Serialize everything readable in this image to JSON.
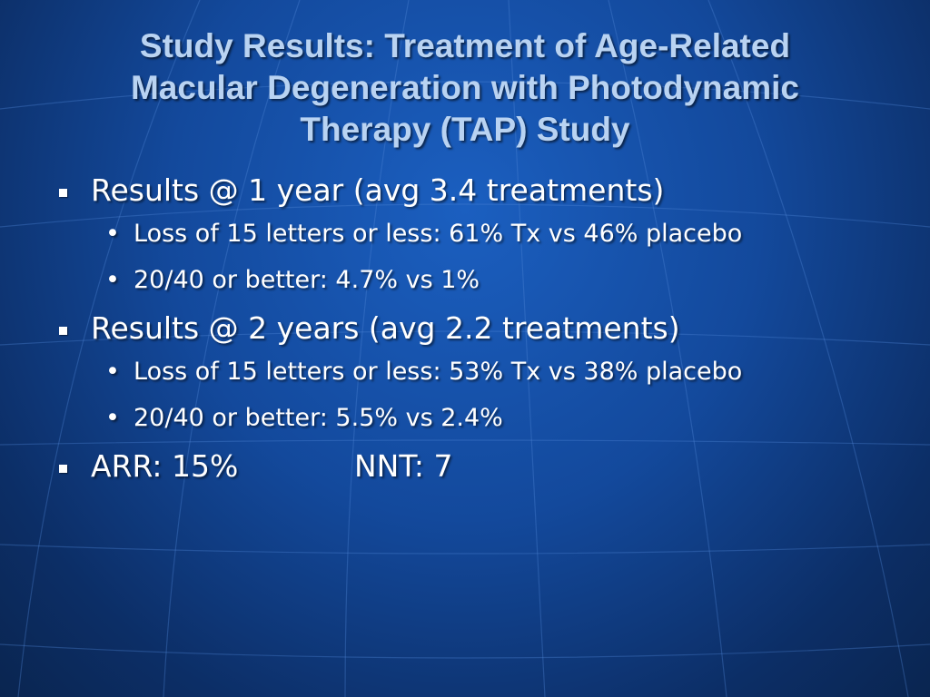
{
  "title": {
    "line1": "Study Results:  Treatment of Age-Related",
    "line2": "Macular Degeneration with Photodynamic",
    "line3": "Therapy (TAP) Study"
  },
  "bullets": [
    {
      "text": "Results @ 1 year (avg 3.4 treatments)",
      "sub": [
        "Loss of 15 letters or less: 61% Tx vs 46% placebo",
        "20/40 or better: 4.7% vs 1%"
      ]
    },
    {
      "text": "Results @ 2 years (avg 2.2 treatments)",
      "sub": [
        "Loss of 15 letters or less: 53% Tx vs 38% placebo",
        "20/40 or better: 5.5% vs 2.4%"
      ]
    }
  ],
  "summary": {
    "arr": "ARR: 15%",
    "nnt": "NNT: 7"
  },
  "bullet_marks": {
    "level1": "square",
    "level2": "•"
  },
  "colors": {
    "background": "#13499c",
    "title": "#b9d3f2",
    "text": "#ffffff"
  }
}
